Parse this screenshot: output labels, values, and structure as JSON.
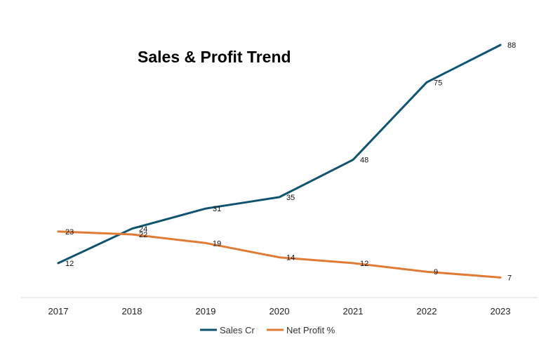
{
  "chart_data": {
    "type": "line",
    "title": "Sales & Profit Trend",
    "xlabel": "",
    "ylabel": "",
    "categories": [
      "2017",
      "2018",
      "2019",
      "2020",
      "2021",
      "2022",
      "2023"
    ],
    "series": [
      {
        "name": "Sales Cr",
        "values": [
          12,
          24,
          31,
          35,
          48,
          75,
          88
        ],
        "color": "#0e5470"
      },
      {
        "name": "Net Profit %",
        "values": [
          23,
          22,
          19,
          14,
          12,
          9,
          7
        ],
        "color": "#e07b34"
      }
    ],
    "ylim": [
      0,
      100
    ],
    "grid": false,
    "legend_position": "bottom"
  }
}
